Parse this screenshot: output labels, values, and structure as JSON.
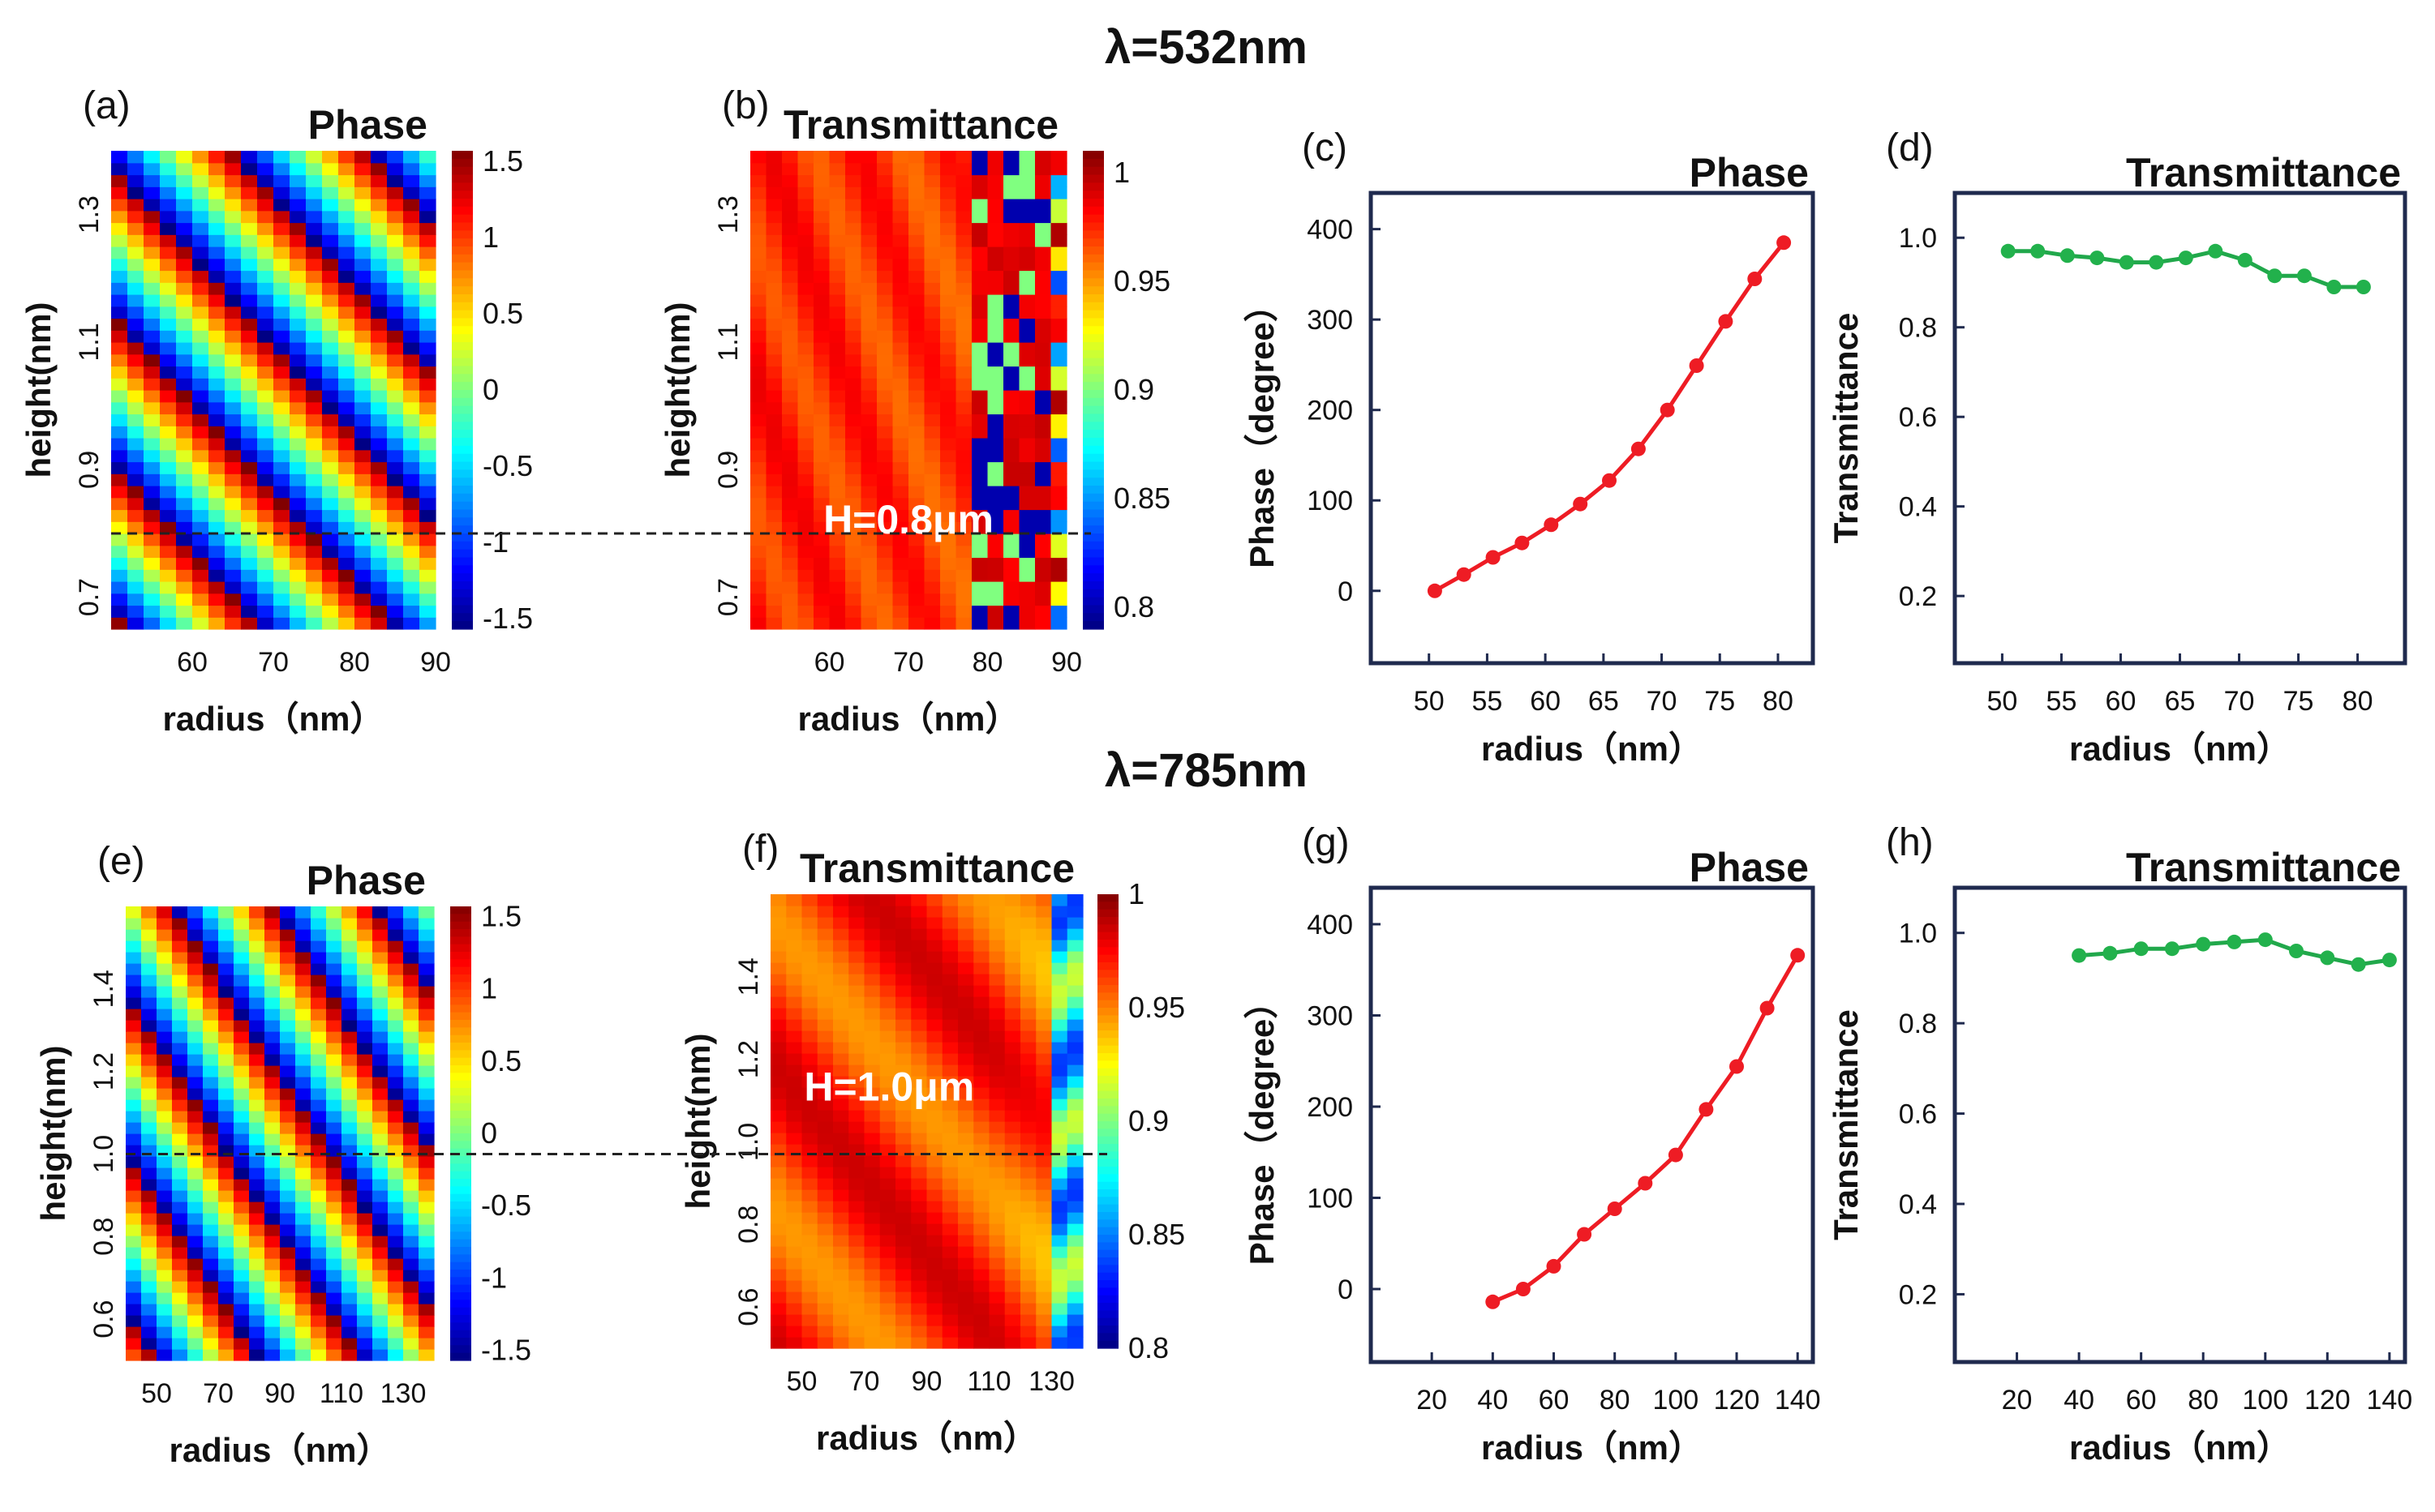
{
  "figure": {
    "row1_title": "λ=532nm",
    "row2_title": "λ=785nm"
  },
  "colors": {
    "red_line": "#ee1c24",
    "green_line": "#21a84b",
    "green_marker": "#22b14c",
    "axis_frame": "#1f2a4e",
    "dashed_line": "#222222"
  },
  "chart_data": [
    {
      "id": "a",
      "type": "heatmap",
      "label": "(a)",
      "title": "Phase",
      "xlabel": "radius（nm）",
      "ylabel": "height(nm)",
      "xlim": [
        50,
        90
      ],
      "ylim": [
        0.65,
        1.4
      ],
      "xticks": [
        "60",
        "70",
        "80",
        "90"
      ],
      "xtick_values": [
        60,
        70,
        80,
        90
      ],
      "yticks": [
        "0.7",
        "0.9",
        "1.1",
        "1.3"
      ],
      "ytick_values": [
        0.7,
        0.9,
        1.1,
        1.3
      ],
      "colorbar": {
        "min": -1.57,
        "max": 1.57,
        "ticks": [
          "1.5",
          "1",
          "0.5",
          "0",
          "-0.5",
          "-1",
          "-1.5"
        ],
        "tick_values": [
          1.5,
          1,
          0.5,
          0,
          -0.5,
          -1,
          -1.5
        ]
      },
      "cells": {
        "nx": 20,
        "ny": 40
      },
      "mode": "phase532",
      "dashed_line_at": 0.8
    },
    {
      "id": "b",
      "type": "heatmap",
      "label": "(b)",
      "title": "Transmittance",
      "xlabel": "radius（nm）",
      "ylabel": "height(nm)",
      "xlim": [
        50,
        90
      ],
      "ylim": [
        0.65,
        1.4
      ],
      "xticks": [
        "60",
        "70",
        "80",
        "90"
      ],
      "xtick_values": [
        60,
        70,
        80,
        90
      ],
      "yticks": [
        "0.7",
        "0.9",
        "1.1",
        "1.3"
      ],
      "ytick_values": [
        0.7,
        0.9,
        1.1,
        1.3
      ],
      "colorbar": {
        "min": 0.79,
        "max": 1.01,
        "ticks": [
          "1",
          "0.95",
          "0.9",
          "0.85",
          "0.8"
        ],
        "tick_values": [
          1,
          0.95,
          0.9,
          0.85,
          0.8
        ]
      },
      "cells": {
        "nx": 20,
        "ny": 40
      },
      "mode": "trans532",
      "annotation": "H=0.8μm",
      "annotation_at": [
        70,
        0.8
      ],
      "dashed_line_at": 0.8
    },
    {
      "id": "c",
      "type": "line",
      "label": "(c)",
      "title": "Phase",
      "xlabel": "radius（nm）",
      "ylabel": "Phase（degree）",
      "xlim": [
        45,
        83
      ],
      "ylim": [
        -80,
        440
      ],
      "xticks": [
        "50",
        "55",
        "60",
        "65",
        "70",
        "75",
        "80"
      ],
      "xtick_values": [
        50,
        55,
        60,
        65,
        70,
        75,
        80
      ],
      "yticks": [
        "0",
        "100",
        "200",
        "300",
        "400"
      ],
      "ytick_values": [
        0,
        100,
        200,
        300,
        400
      ],
      "series": [
        {
          "name": "Phase",
          "color": "#ee1c24",
          "x": [
            50.5,
            53,
            55.5,
            58,
            60.5,
            63,
            65.5,
            68,
            70.5,
            73,
            75.5,
            78,
            80.5
          ],
          "y": [
            0,
            18,
            37,
            53,
            73,
            96,
            122,
            157,
            200,
            249,
            298,
            345,
            385
          ]
        }
      ]
    },
    {
      "id": "d",
      "type": "line",
      "label": "(d)",
      "title": "Transmittance",
      "xlabel": "radius（nm）",
      "ylabel": "Transmittance",
      "xlim": [
        46,
        84
      ],
      "ylim": [
        0.05,
        1.1
      ],
      "xticks": [
        "50",
        "55",
        "60",
        "65",
        "70",
        "75",
        "80"
      ],
      "xtick_values": [
        50,
        55,
        60,
        65,
        70,
        75,
        80
      ],
      "yticks": [
        "1.0",
        "0.8",
        "0.6",
        "0.4",
        "0.2"
      ],
      "ytick_values": [
        1.0,
        0.8,
        0.6,
        0.4,
        0.2
      ],
      "series": [
        {
          "name": "Transmittance",
          "color": "#21a84b",
          "x": [
            50.5,
            53,
            55.5,
            58,
            60.5,
            63,
            65.5,
            68,
            70.5,
            73,
            75.5,
            78,
            80.5
          ],
          "y": [
            0.97,
            0.97,
            0.96,
            0.955,
            0.945,
            0.945,
            0.955,
            0.97,
            0.95,
            0.915,
            0.915,
            0.89,
            0.89
          ]
        }
      ]
    },
    {
      "id": "e",
      "type": "heatmap",
      "label": "(e)",
      "title": "Phase",
      "xlabel": "radius（nm）",
      "ylabel": "height(nm)",
      "xlim": [
        40,
        140
      ],
      "ylim": [
        0.5,
        1.6
      ],
      "xticks": [
        "50",
        "70",
        "90",
        "110",
        "130"
      ],
      "xtick_values": [
        50,
        70,
        90,
        110,
        130
      ],
      "yticks": [
        "0.6",
        "0.8",
        "1.0",
        "1.2",
        "1.4"
      ],
      "ytick_values": [
        0.6,
        0.8,
        1.0,
        1.2,
        1.4
      ],
      "colorbar": {
        "min": -1.57,
        "max": 1.57,
        "ticks": [
          "1.5",
          "1",
          "0.5",
          "0",
          "-0.5",
          "-1",
          "-1.5"
        ],
        "tick_values": [
          1.5,
          1,
          0.5,
          0,
          -0.5,
          -1,
          -1.5
        ]
      },
      "cells": {
        "nx": 20,
        "ny": 40
      },
      "mode": "phase785",
      "dashed_line_at": 1.0
    },
    {
      "id": "f",
      "type": "heatmap",
      "label": "(f)",
      "title": "Transmittance",
      "xlabel": "radius（nm）",
      "ylabel": "height(nm)",
      "xlim": [
        40,
        140
      ],
      "ylim": [
        0.5,
        1.6
      ],
      "xticks": [
        "50",
        "70",
        "90",
        "110",
        "130"
      ],
      "xtick_values": [
        50,
        70,
        90,
        110,
        130
      ],
      "yticks": [
        "0.6",
        "0.8",
        "1.0",
        "1.2",
        "1.4"
      ],
      "ytick_values": [
        0.6,
        0.8,
        1.0,
        1.2,
        1.4
      ],
      "colorbar": {
        "min": 0.8,
        "max": 1.0,
        "ticks": [
          "1",
          "0.95",
          "0.9",
          "0.85",
          "0.8"
        ],
        "tick_values": [
          1,
          0.95,
          0.9,
          0.85,
          0.8
        ]
      },
      "cells": {
        "nx": 20,
        "ny": 40
      },
      "mode": "trans785",
      "annotation": "H=1.0μm",
      "annotation_at": [
        78,
        1.1
      ],
      "dashed_line_at": 1.0
    },
    {
      "id": "g",
      "type": "line",
      "label": "(g)",
      "title": "Phase",
      "xlabel": "radius（nm）",
      "ylabel": "Phase（degree）",
      "xlim": [
        0,
        145
      ],
      "ylim": [
        -80,
        440
      ],
      "xticks": [
        "20",
        "40",
        "60",
        "80",
        "100",
        "120",
        "140"
      ],
      "xtick_values": [
        20,
        40,
        60,
        80,
        100,
        120,
        140
      ],
      "yticks": [
        "0",
        "100",
        "200",
        "300",
        "400"
      ],
      "ytick_values": [
        0,
        100,
        200,
        300,
        400
      ],
      "series": [
        {
          "name": "Phase",
          "color": "#ee1c24",
          "x": [
            40,
            50,
            60,
            70,
            80,
            90,
            100,
            110,
            120,
            130,
            140
          ],
          "y": [
            -14,
            0,
            25,
            60,
            88,
            116,
            147,
            197,
            244,
            308,
            366
          ]
        }
      ]
    },
    {
      "id": "h",
      "type": "line",
      "label": "(h)",
      "title": "Transmittance",
      "xlabel": "radius（nm）",
      "ylabel": "Transmittance",
      "xlim": [
        0,
        145
      ],
      "ylim": [
        0.05,
        1.1
      ],
      "xticks": [
        "20",
        "40",
        "60",
        "80",
        "100",
        "120",
        "140"
      ],
      "xtick_values": [
        20,
        40,
        60,
        80,
        100,
        120,
        140
      ],
      "yticks": [
        "1.0",
        "0.8",
        "0.6",
        "0.4",
        "0.2"
      ],
      "ytick_values": [
        1.0,
        0.8,
        0.6,
        0.4,
        0.2
      ],
      "series": [
        {
          "name": "Transmittance",
          "color": "#21a84b",
          "x": [
            40,
            50,
            60,
            70,
            80,
            90,
            100,
            110,
            120,
            130,
            140
          ],
          "y": [
            0.95,
            0.955,
            0.965,
            0.965,
            0.975,
            0.98,
            0.985,
            0.96,
            0.945,
            0.93,
            0.94
          ]
        }
      ]
    }
  ]
}
